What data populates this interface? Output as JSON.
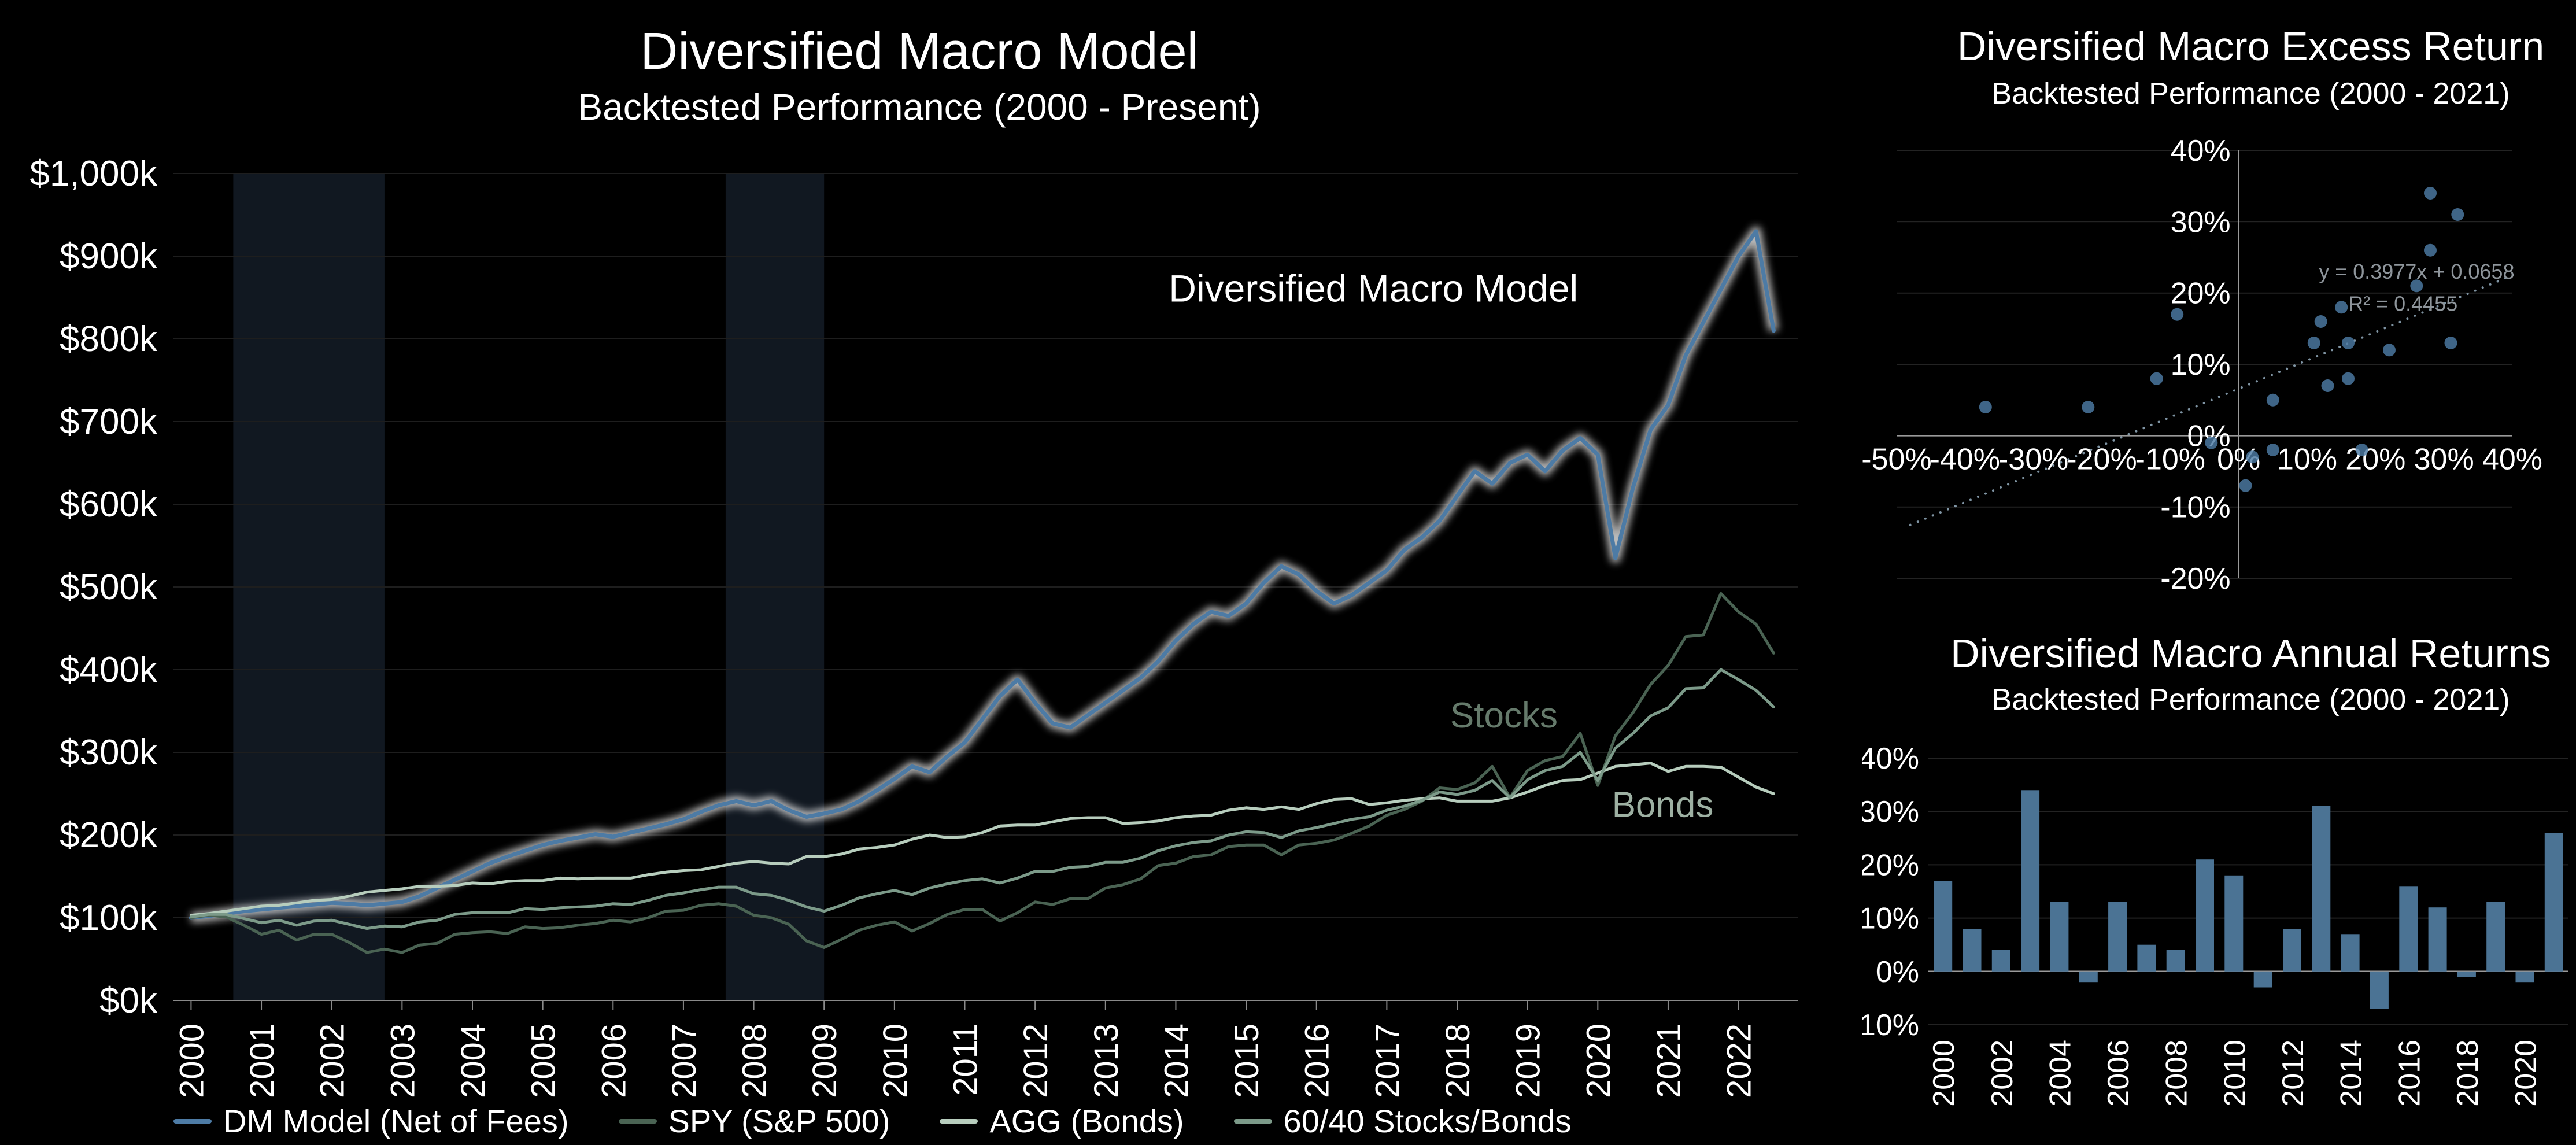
{
  "page": {
    "background": "#000000",
    "text_color": "#ffffff"
  },
  "chart_data": [
    {
      "type": "line",
      "title": "Diversified Macro Model",
      "subtitle": "Backtested Performance (2000 - Present)",
      "x_start": 2000,
      "x_step": 0.25,
      "xlim": [
        1999.75,
        2022.85
      ],
      "ylim": [
        0,
        1000
      ],
      "y_unit": "$k",
      "y_ticks": [
        [
          0,
          "$0k"
        ],
        [
          100,
          "$100k"
        ],
        [
          200,
          "$200k"
        ],
        [
          300,
          "$300k"
        ],
        [
          400,
          "$400k"
        ],
        [
          500,
          "$500k"
        ],
        [
          600,
          "$600k"
        ],
        [
          700,
          "$700k"
        ],
        [
          800,
          "$800k"
        ],
        [
          900,
          "$900k"
        ],
        [
          1000,
          "$1,000k"
        ]
      ],
      "x_ticks": [
        2000,
        2001,
        2002,
        2003,
        2004,
        2005,
        2006,
        2007,
        2008,
        2009,
        2010,
        2011,
        2012,
        2013,
        2014,
        2015,
        2016,
        2017,
        2018,
        2019,
        2020,
        2021,
        2022
      ],
      "band_color": "#111821",
      "recession_bands": [
        [
          2000.6,
          2002.75
        ],
        [
          2007.6,
          2009.0
        ]
      ],
      "series": [
        {
          "name": "DM Model (Net of Fees)",
          "color": "#4d7ba5",
          "glow": true,
          "values": [
            100,
            102,
            105,
            108,
            110,
            112,
            114,
            116,
            118,
            117,
            115,
            117,
            119,
            126,
            136,
            146,
            156,
            166,
            174,
            181,
            188,
            193,
            197,
            201,
            198,
            203,
            208,
            213,
            219,
            228,
            236,
            241,
            236,
            241,
            230,
            222,
            226,
            231,
            241,
            254,
            268,
            283,
            276,
            295,
            312,
            340,
            368,
            388,
            360,
            335,
            330,
            345,
            360,
            375,
            390,
            410,
            435,
            455,
            470,
            465,
            480,
            505,
            525,
            515,
            495,
            480,
            490,
            505,
            520,
            545,
            560,
            580,
            610,
            640,
            625,
            650,
            660,
            640,
            665,
            680,
            660,
            535,
            620,
            690,
            720,
            780,
            820,
            860,
            900,
            930,
            810
          ]
        },
        {
          "name": "SPY (S&P 500)",
          "color": "#4a6353",
          "glow": false,
          "values": [
            100,
            103,
            101,
            91,
            80,
            85,
            73,
            80,
            80,
            70,
            58,
            62,
            58,
            67,
            69,
            80,
            82,
            83,
            81,
            89,
            87,
            88,
            91,
            93,
            97,
            95,
            100,
            108,
            109,
            115,
            117,
            114,
            103,
            100,
            92,
            72,
            64,
            74,
            85,
            91,
            95,
            84,
            93,
            104,
            110,
            110,
            96,
            106,
            119,
            116,
            123,
            123,
            136,
            140,
            147,
            163,
            166,
            174,
            176,
            186,
            188,
            188,
            176,
            188,
            190,
            194,
            202,
            211,
            224,
            231,
            241,
            257,
            255,
            263,
            283,
            245,
            278,
            290,
            295,
            323,
            260,
            320,
            348,
            382,
            405,
            440,
            442,
            492,
            470,
            455,
            420
          ]
        },
        {
          "name": "AGG (Bonds)",
          "color": "#b7cdbd",
          "glow": false,
          "values": [
            103,
            105,
            108,
            111,
            114,
            115,
            118,
            121,
            122,
            126,
            131,
            133,
            135,
            138,
            138,
            139,
            142,
            141,
            144,
            145,
            145,
            148,
            147,
            148,
            148,
            148,
            152,
            155,
            157,
            158,
            162,
            166,
            168,
            166,
            165,
            174,
            174,
            177,
            183,
            185,
            188,
            195,
            200,
            197,
            198,
            203,
            211,
            212,
            212,
            216,
            220,
            221,
            221,
            214,
            215,
            217,
            221,
            223,
            224,
            230,
            233,
            231,
            234,
            231,
            238,
            243,
            244,
            237,
            239,
            242,
            244,
            245,
            241,
            241,
            241,
            245,
            252,
            260,
            266,
            267,
            275,
            283,
            285,
            287,
            277,
            283,
            283,
            282,
            270,
            258,
            250
          ]
        },
        {
          "name": "60/40 Stocks/Bonds",
          "color": "#7c9a89",
          "glow": false,
          "values": [
            101,
            104,
            104,
            99,
            94,
            97,
            91,
            96,
            97,
            92,
            87,
            90,
            89,
            95,
            97,
            104,
            106,
            106,
            106,
            111,
            110,
            112,
            113,
            114,
            117,
            116,
            121,
            127,
            130,
            134,
            137,
            137,
            129,
            127,
            121,
            113,
            108,
            115,
            124,
            129,
            133,
            128,
            136,
            141,
            145,
            147,
            142,
            148,
            156,
            156,
            161,
            162,
            167,
            167,
            172,
            181,
            187,
            191,
            193,
            200,
            204,
            203,
            197,
            205,
            209,
            214,
            219,
            222,
            230,
            235,
            242,
            252,
            249,
            254,
            266,
            245,
            267,
            278,
            283,
            300,
            266,
            305,
            323,
            344,
            354,
            377,
            378,
            400,
            388,
            375,
            355
          ]
        }
      ],
      "annotations": [
        {
          "text": "Diversified Macro Model",
          "x": 2013.9,
          "y": 845,
          "color": "#ffffff",
          "size": 66
        },
        {
          "text": "Stocks",
          "x": 2017.9,
          "y": 330,
          "color": "#657a6b",
          "size": 62
        },
        {
          "text": "Bonds",
          "x": 2020.2,
          "y": 222,
          "color": "#9db0a2",
          "size": 62
        }
      ]
    },
    {
      "type": "scatter",
      "title": "Diversified Macro Excess Return",
      "subtitle": "Backtested Performance (2000 - 2021)",
      "xlim": [
        -50,
        40
      ],
      "ylim": [
        -20,
        40
      ],
      "tick_suffix": "%",
      "x_ticks": [
        -50,
        -40,
        -30,
        -20,
        -10,
        0,
        10,
        20,
        30,
        40
      ],
      "y_ticks": [
        40,
        30,
        20,
        10,
        0,
        -10,
        -20
      ],
      "point_color": "#4d7ba5",
      "points": [
        [
          -9,
          17
        ],
        [
          -12,
          8
        ],
        [
          -22,
          4
        ],
        [
          28,
          34
        ],
        [
          11,
          13
        ],
        [
          5,
          -2
        ],
        [
          16,
          13
        ],
        [
          5,
          5
        ],
        [
          -37,
          4
        ],
        [
          26,
          21
        ],
        [
          15,
          18
        ],
        [
          2,
          -3
        ],
        [
          16,
          8
        ],
        [
          32,
          31
        ],
        [
          13,
          7
        ],
        [
          1,
          -7
        ],
        [
          12,
          16
        ],
        [
          22,
          12
        ],
        [
          -4,
          -1
        ],
        [
          31,
          13
        ],
        [
          18,
          -2
        ],
        [
          28,
          26
        ]
      ],
      "trendline": {
        "slope": 0.3977,
        "intercept": 6.58,
        "color": "#7f94a3",
        "style": "dotted",
        "label_equation": "y = 0.3977x + 0.0658",
        "label_r2": "R² = 0.4455",
        "label_color": "#8e959b"
      }
    },
    {
      "type": "bar",
      "title": "Diversified Macro Annual Returns",
      "subtitle": "Backtested Performance (2000 - 2021)",
      "categories": [
        2000,
        2001,
        2002,
        2003,
        2004,
        2005,
        2006,
        2007,
        2008,
        2009,
        2010,
        2011,
        2012,
        2013,
        2014,
        2015,
        2016,
        2017,
        2018,
        2019,
        2020,
        2021
      ],
      "values": [
        17,
        8,
        4,
        34,
        13,
        -2,
        13,
        5,
        4,
        21,
        18,
        -3,
        8,
        31,
        7,
        -7,
        16,
        12,
        -1,
        13,
        -2,
        26
      ],
      "ylim": [
        -10,
        40
      ],
      "y_ticks": [
        40,
        30,
        20,
        10,
        0,
        -10
      ],
      "tick_suffix": "%",
      "x_label_step": 2,
      "bar_color": "#4b7394"
    }
  ]
}
